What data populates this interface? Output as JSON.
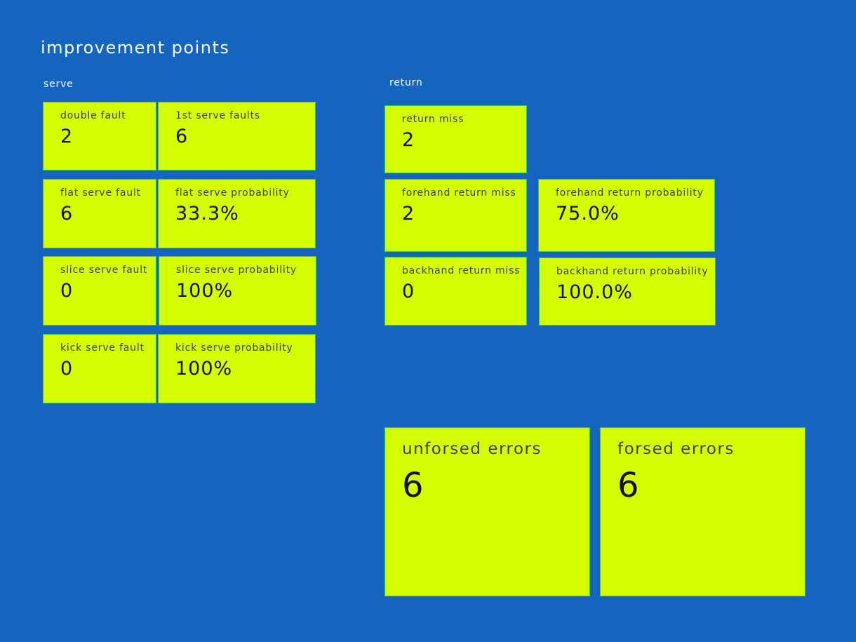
{
  "title": "improvement points",
  "serve": {
    "label": "serve",
    "cards": [
      {
        "label": "double fault",
        "value": "2"
      },
      {
        "label": "1st serve faults",
        "value": "6"
      },
      {
        "label": "flat serve fault",
        "value": "6"
      },
      {
        "label": "flat serve probability",
        "value": "33.3%"
      },
      {
        "label": "slice serve fault",
        "value": "0"
      },
      {
        "label": "slice serve probability",
        "value": "100%"
      },
      {
        "label": "kick serve fault",
        "value": "0"
      },
      {
        "label": "kick serve probability",
        "value": "100%"
      }
    ]
  },
  "return": {
    "label": "return",
    "cards": [
      {
        "label": "return miss",
        "value": "2"
      },
      {
        "label": "forehand return miss",
        "value": "2"
      },
      {
        "label": "forehand return probability",
        "value": "75.0%"
      },
      {
        "label": "backhand return miss",
        "value": "0"
      },
      {
        "label": "backhand return probability",
        "value": "100.0%"
      }
    ]
  },
  "errors": {
    "cards": [
      {
        "label": "unforsed errors",
        "value": "6"
      },
      {
        "label": "forsed errors",
        "value": "6"
      }
    ]
  },
  "colors": {
    "background": "#1565c0",
    "card": "#d4ff00",
    "card_border": "#34c759"
  }
}
